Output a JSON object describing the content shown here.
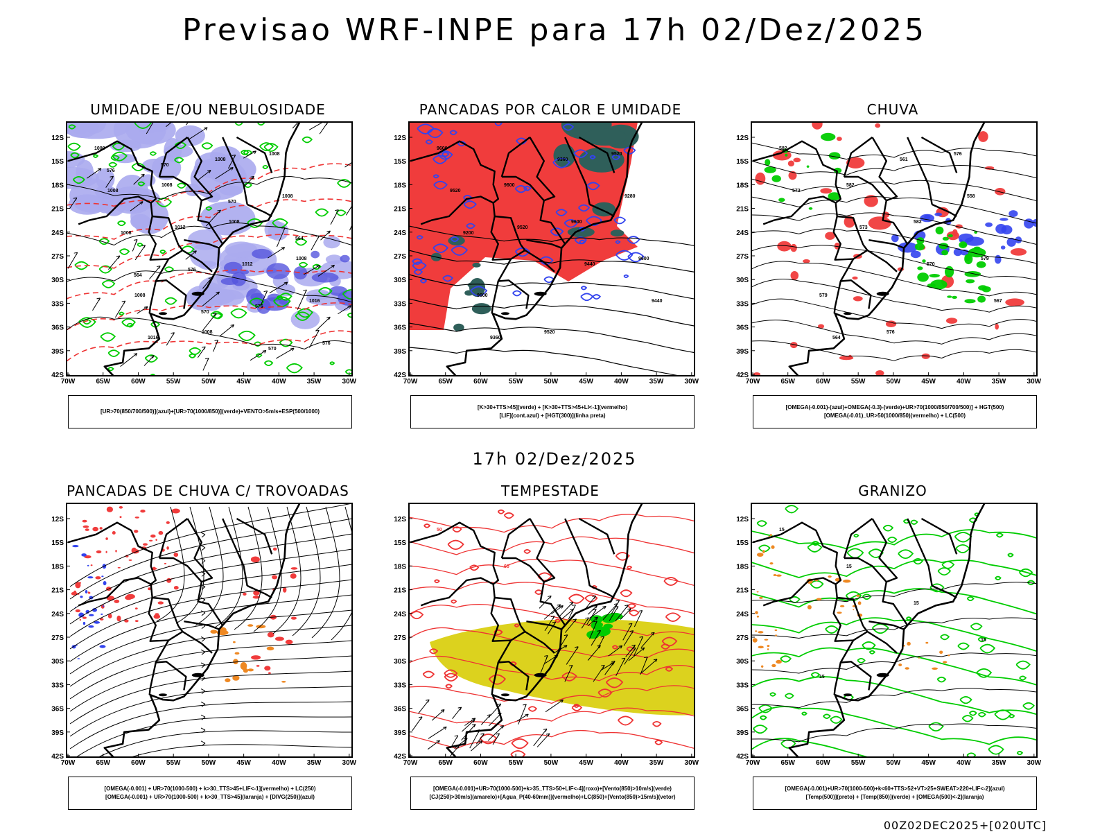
{
  "title": "Previsao WRF-INPE  para 17h 02/Dez/2025",
  "mid_title": "17h 02/Dez/2025",
  "footer": "00Z02DEC2025+[020UTC]",
  "lat_labels": [
    "12S",
    "15S",
    "18S",
    "21S",
    "24S",
    "27S",
    "30S",
    "33S",
    "36S",
    "39S",
    "42S"
  ],
  "lon_labels": [
    "70W",
    "65W",
    "60W",
    "55W",
    "50W",
    "45W",
    "40W",
    "35W",
    "30W"
  ],
  "panels": [
    {
      "title": "UMIDADE E/OU NEBULOSIDADE",
      "legend": [
        "[UR>70(850/700/500)](azul)+[UR>70(1000/850)](verde)+VENTO>5m/s+ESP(500/1000)"
      ],
      "contour_labels": [
        "1008",
        "1008",
        "1008",
        "1008",
        "1008",
        "1008",
        "1008",
        "1008",
        "1012",
        "1012",
        "1016",
        "1016",
        "1008",
        "1008",
        "1008",
        "576",
        "576",
        "576",
        "570",
        "570",
        "564",
        "564",
        "570",
        "570",
        "576"
      ]
    },
    {
      "title": "PANCADAS POR CALOR E UMIDADE",
      "legend": [
        "[K>30+TTS>45](verde) + [K>30+TTS>45+LI<-1](vermelho)",
        "[LIF](cont.azul) + [HGT(300)](linha preta)"
      ],
      "contour_labels": [
        "9600",
        "9600",
        "9600",
        "9600",
        "9600",
        "9520",
        "9520",
        "9520",
        "9520",
        "9440",
        "9440",
        "9360",
        "9360",
        "9280",
        "9200"
      ]
    },
    {
      "title": "CHUVA",
      "legend": [
        "[OMEGA(-0.001)-(azul)+OMEGA(-0.3)-(verde)+UR>70(1000/850/700/500)] + HGT(500)",
        "[OMEGA(-0.01)_UR>50(1000/850)(vermelho) + LC(500)"
      ],
      "contour_labels": [
        "582",
        "582",
        "582",
        "579",
        "579",
        "576",
        "576",
        "573",
        "573",
        "570",
        "567",
        "564",
        "561",
        "558"
      ]
    },
    {
      "title": "PANCADAS DE CHUVA C/ TROVOADAS",
      "legend": [
        "[OMEGA(-0.001) + UR>70(1000-500) + k>30_TTS>45+LIF<-1](vermelho) + LC(250)",
        "[OMEGA(-0.001) + UR>70(1000-500) + k>30_TTS>45](laranja) + [DIVG(250)](azul)"
      ],
      "contour_labels": []
    },
    {
      "title": "TEMPESTADE",
      "legend": [
        "[OMEGA(-0.001)+UR>70(1000-500)+k>35_TTS>50+LIF<-4](roxo)+[Vento(850)>10m/s](verde)",
        "[CJ(250)>30m/s](amarelo)+[Agua_P(40-60mm)](vermelho)+LC(850)+[Vento(850)>15m/s](vetor)"
      ],
      "contour_labels": [
        "50",
        "60"
      ]
    },
    {
      "title": "GRANIZO",
      "legend": [
        "[OMEGA(-0.001)+UR>70(1000-500)+k<60+TTS>52+VT>25+SWEAT>220+LIF<-2](azul)",
        "[Temp(500)](preto) + [Temp(850)](verde) + [OMEGA(500)<-2](laranja)"
      ],
      "contour_labels": [
        "15",
        "15",
        "15",
        "15",
        "15"
      ]
    }
  ],
  "colors": {
    "map_border": "#000000",
    "blue_shade": "#aaaaee",
    "blue_dark": "#5555dd",
    "green_contour": "#00cc00",
    "red_contour": "#ee3333",
    "red_fill": "#f03c3c",
    "teal_fill": "#2f5f5a",
    "orange": "#ee8822",
    "yellow_fill": "#dcd21e",
    "blue_contour": "#3344ee"
  }
}
